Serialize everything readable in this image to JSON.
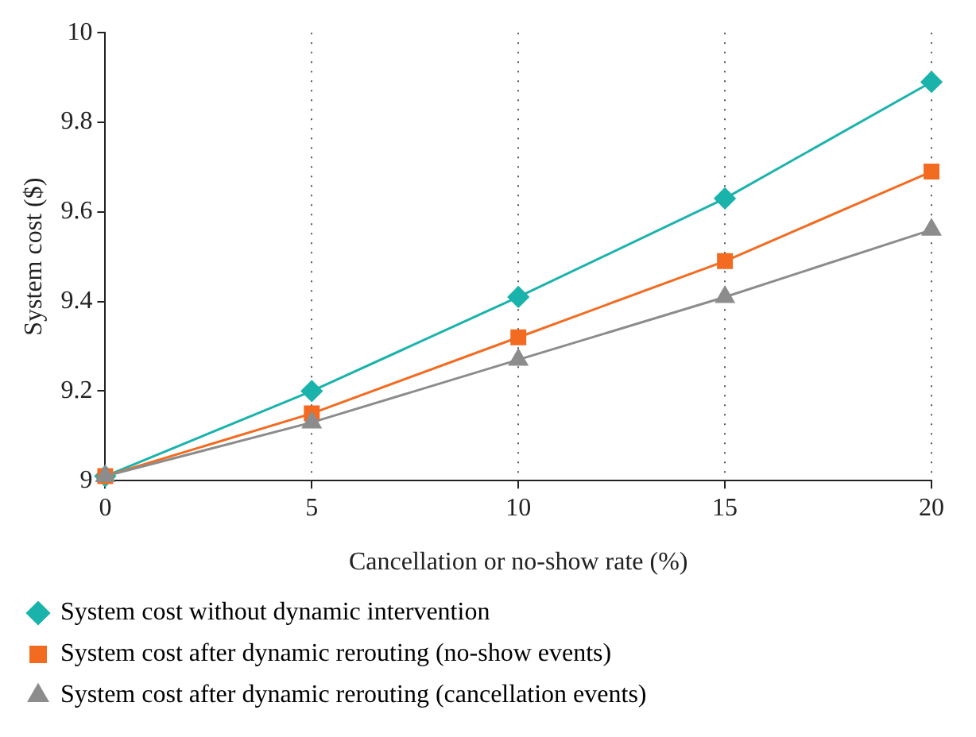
{
  "chart_data": {
    "type": "line",
    "xlabel": "Cancellation or no-show rate (%)",
    "ylabel": "System cost ($)",
    "x": [
      0,
      5,
      10,
      15,
      20
    ],
    "series": [
      {
        "name": "System cost without dynamic intervention",
        "color": "#1ab3ac",
        "marker": "diamond",
        "values": [
          9.01,
          9.2,
          9.41,
          9.63,
          9.89
        ]
      },
      {
        "name": "System cost after dynamic rerouting (no-show events)",
        "color": "#f26b21",
        "marker": "square",
        "values": [
          9.01,
          9.15,
          9.32,
          9.49,
          9.69
        ]
      },
      {
        "name": "System cost after dynamic rerouting (cancellation events)",
        "color": "#8c8c8c",
        "marker": "triangle",
        "values": [
          9.01,
          9.13,
          9.27,
          9.41,
          9.56
        ]
      }
    ],
    "xlim": [
      0,
      20
    ],
    "xticks": [
      0,
      5,
      10,
      15,
      20
    ],
    "ylim": [
      9,
      10
    ],
    "yticks": [
      9,
      9.2,
      9.4,
      9.6,
      9.8,
      10
    ],
    "grid": "x",
    "legend": "bottom",
    "line_style": "solid"
  }
}
